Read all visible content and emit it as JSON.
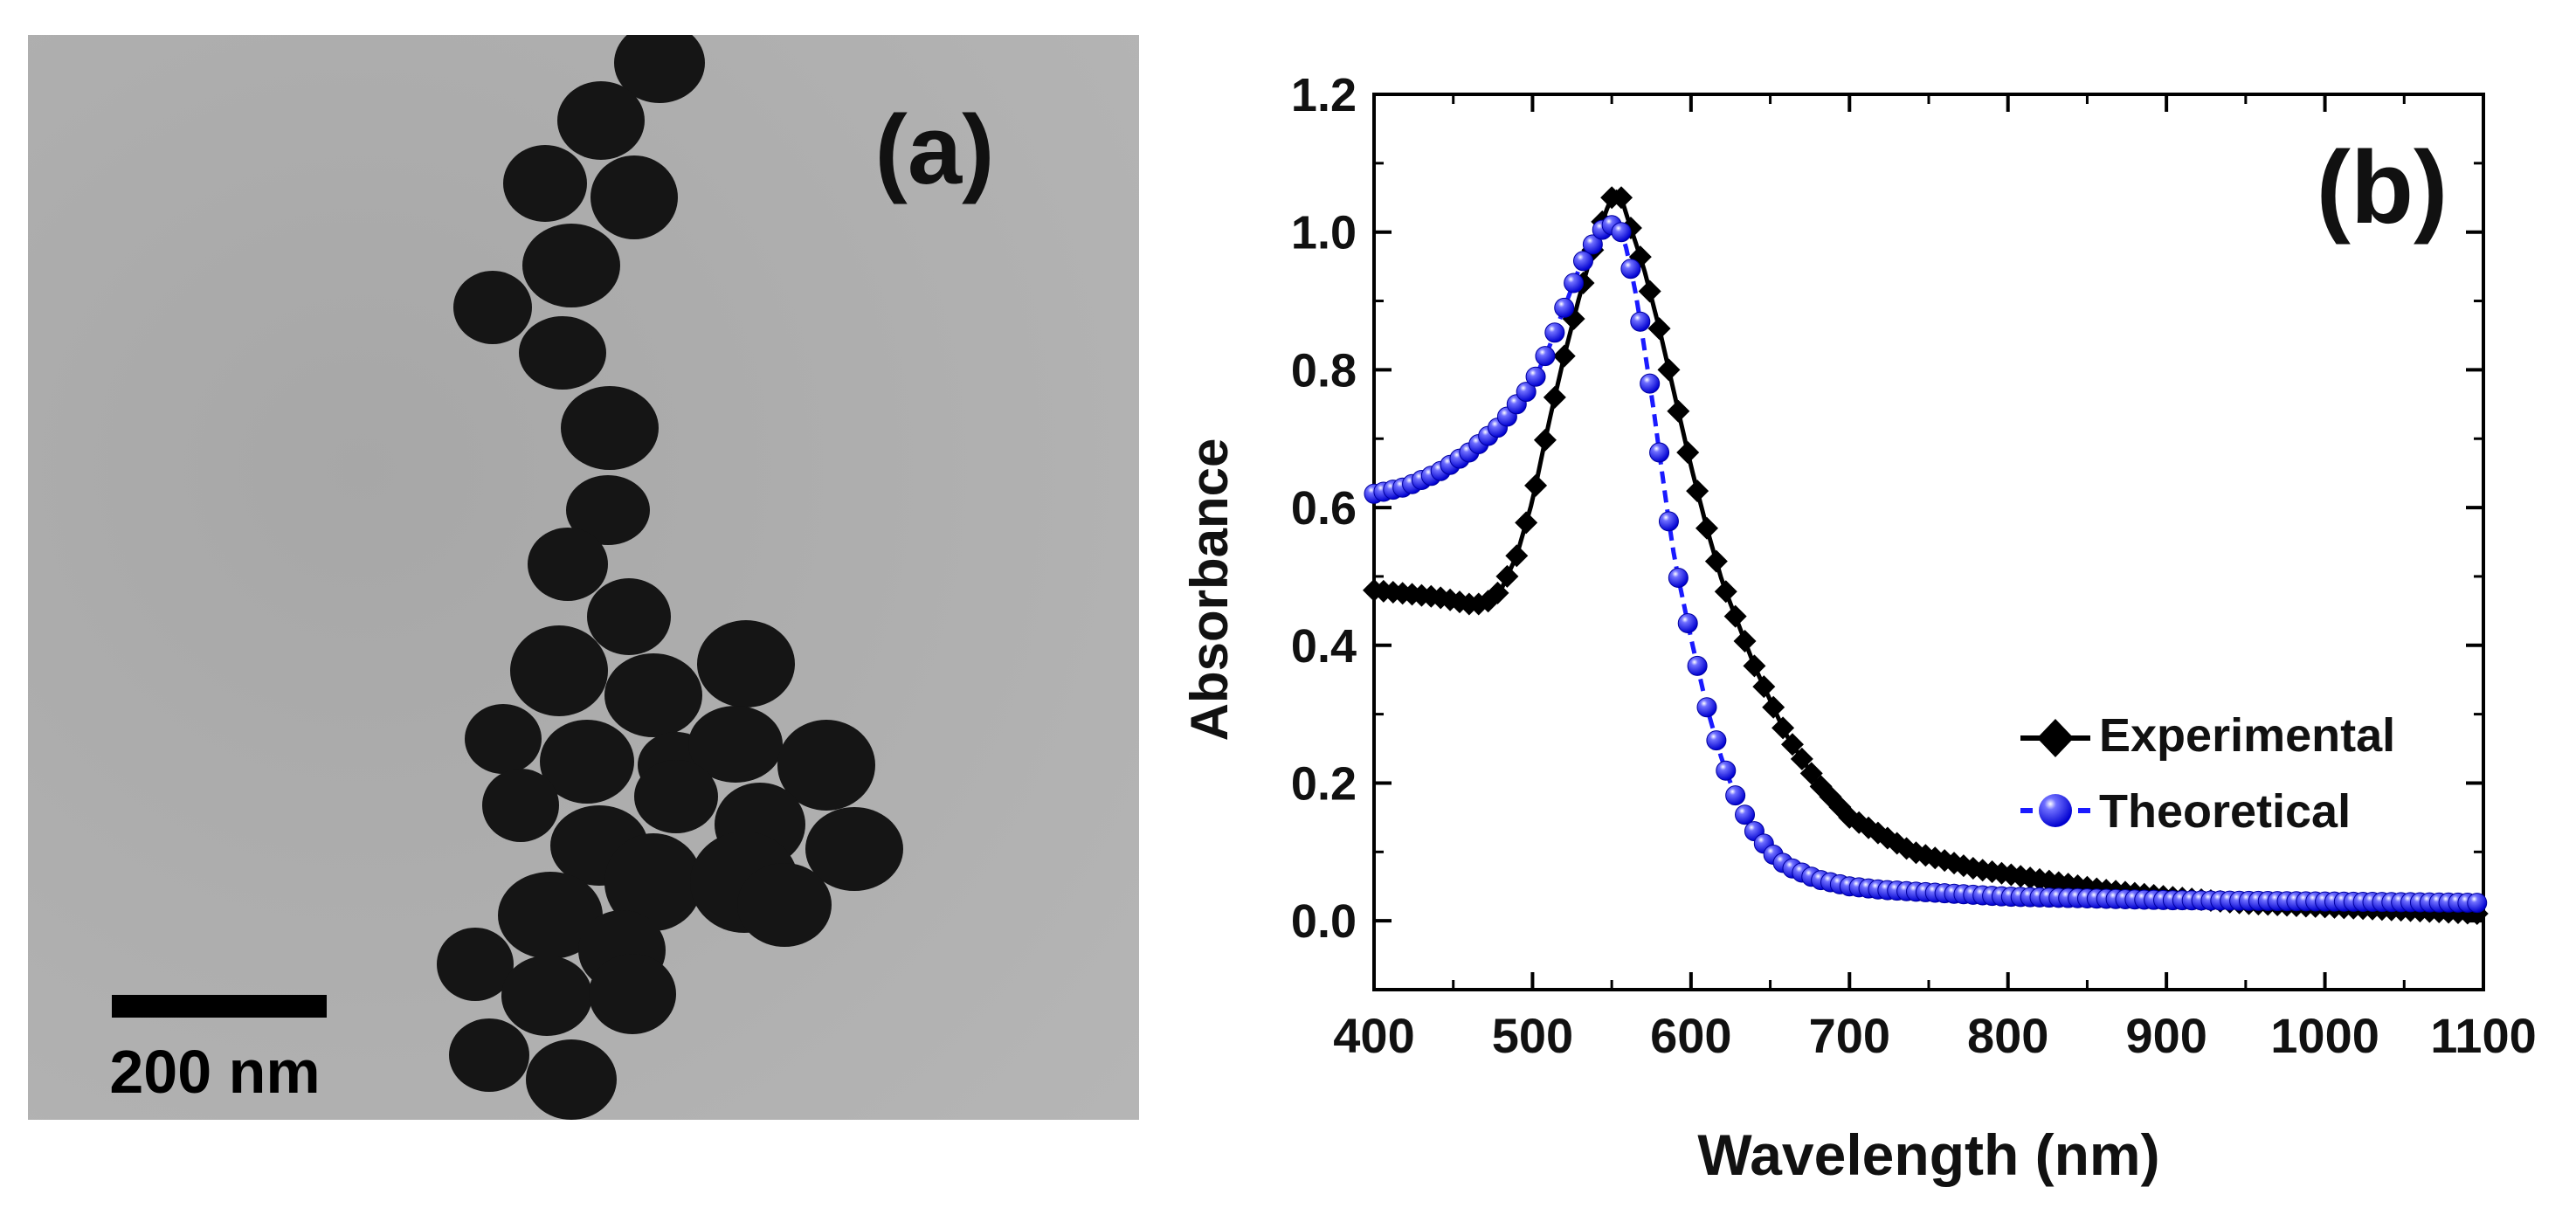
{
  "panel_a": {
    "label": "(a)",
    "scale_bar_label": "200 nm",
    "image_description_kind": "TEM micrograph of a chain of nearly spherical nanoparticles",
    "colors": {
      "background": "#a9a9a9",
      "particle": "#161616",
      "scale_bar": "#000000"
    }
  },
  "panel_b": {
    "label": "(b)"
  },
  "chart_data": {
    "type": "scatter",
    "xlabel": "Wavelength (nm)",
    "ylabel": "Absorbance",
    "xlim": [
      400,
      1100
    ],
    "ylim": [
      -0.1,
      1.2
    ],
    "xticks": [
      400,
      500,
      600,
      700,
      800,
      900,
      1000,
      1100
    ],
    "xtick_labels": [
      "400",
      "500",
      "600",
      "700",
      "800",
      "900",
      "1000",
      "1100"
    ],
    "yticks": [
      0.0,
      0.2,
      0.4,
      0.6,
      0.8,
      1.0,
      1.2
    ],
    "ytick_labels": [
      "0.0",
      "0.2",
      "0.4",
      "0.6",
      "0.8",
      "1.0",
      "1.2"
    ],
    "legend_position": "center-right",
    "grid": false,
    "series": [
      {
        "name": "Experimental",
        "marker": "diamond",
        "color": "#000000",
        "x_start": 400,
        "x_step": 6,
        "x": [
          400,
          440,
          460,
          470,
          480,
          490,
          500,
          510,
          520,
          530,
          540,
          548,
          552,
          556,
          560,
          570,
          580,
          590,
          600,
          610,
          620,
          640,
          660,
          680,
          700,
          740,
          780,
          820,
          860,
          900,
          950,
          1000,
          1050,
          1100
        ],
        "values": [
          0.48,
          0.47,
          0.46,
          0.46,
          0.48,
          0.53,
          0.61,
          0.72,
          0.82,
          0.91,
          0.99,
          1.04,
          1.06,
          1.05,
          1.02,
          0.95,
          0.86,
          0.76,
          0.66,
          0.57,
          0.49,
          0.37,
          0.27,
          0.2,
          0.15,
          0.1,
          0.075,
          0.06,
          0.045,
          0.035,
          0.025,
          0.02,
          0.015,
          0.01
        ]
      },
      {
        "name": "Theoretical",
        "marker": "sphere",
        "color": "#1a1aff",
        "x_start": 400,
        "x_step": 6,
        "x": [
          400,
          420,
          440,
          460,
          480,
          500,
          510,
          520,
          530,
          540,
          546,
          550,
          556,
          560,
          566,
          570,
          576,
          580,
          586,
          590,
          600,
          610,
          620,
          630,
          640,
          650,
          660,
          680,
          700,
          720,
          760,
          800,
          900,
          1000,
          1100
        ],
        "values": [
          0.62,
          0.63,
          0.65,
          0.68,
          0.72,
          0.78,
          0.83,
          0.89,
          0.95,
          0.99,
          1.01,
          1.01,
          1.0,
          0.97,
          0.9,
          0.84,
          0.75,
          0.68,
          0.58,
          0.52,
          0.41,
          0.31,
          0.23,
          0.17,
          0.13,
          0.1,
          0.08,
          0.06,
          0.05,
          0.045,
          0.04,
          0.035,
          0.03,
          0.028,
          0.026
        ]
      }
    ]
  }
}
